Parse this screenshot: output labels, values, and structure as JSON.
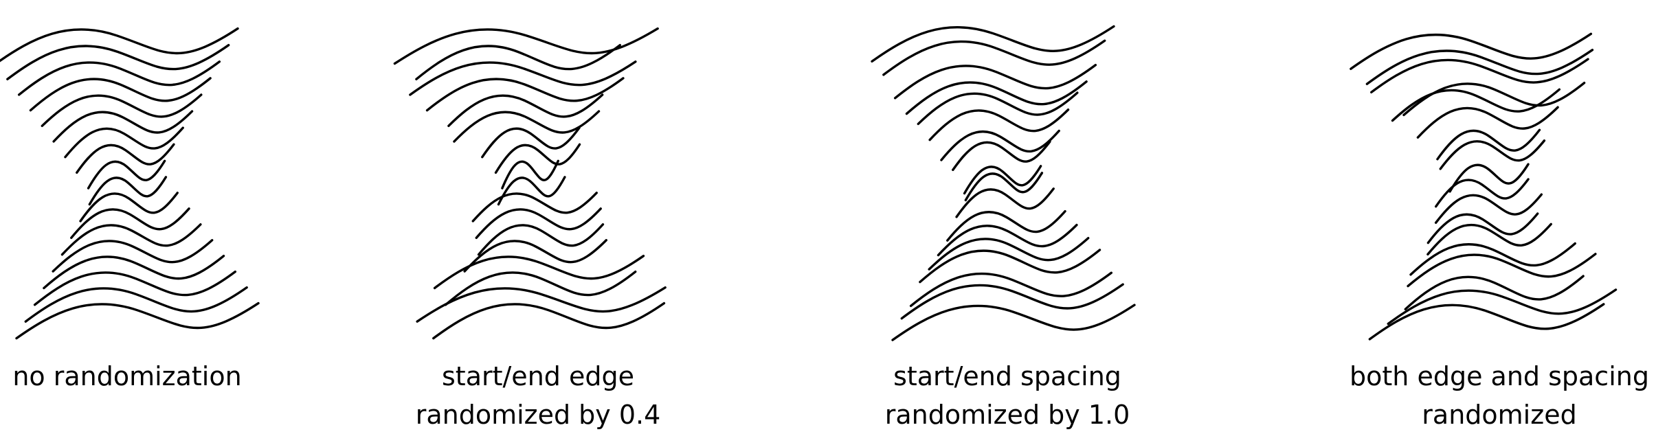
{
  "panels": [
    {
      "caption_lines": [
        "no randomization"
      ],
      "edge_randomization": 0,
      "spacing_randomization": 0
    },
    {
      "caption_lines": [
        "start/end edge",
        "randomized by 0.4"
      ],
      "edge_randomization": 0.4,
      "spacing_randomization": 0
    },
    {
      "caption_lines": [
        "start/end spacing",
        "randomized by 1.0"
      ],
      "edge_randomization": 0,
      "spacing_randomization": 1.0
    },
    {
      "caption_lines": [
        "both edge and spacing",
        "randomized"
      ],
      "edge_randomization": 0.4,
      "spacing_randomization": 1.0
    }
  ],
  "stroke_color": "#000000"
}
